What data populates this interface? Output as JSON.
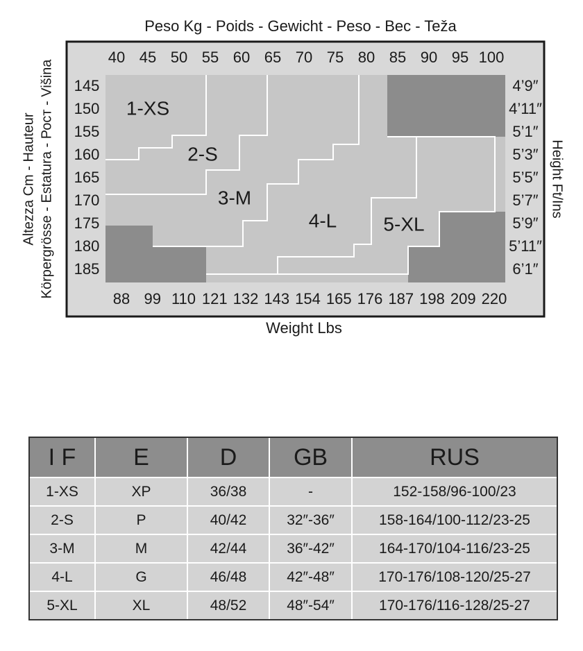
{
  "chart": {
    "top_label": "Peso Kg - Poids - Gewicht - Peso - Bec - Teža",
    "kg_labels": [
      "40",
      "45",
      "50",
      "55",
      "60",
      "65",
      "70",
      "75",
      "80",
      "85",
      "90",
      "95",
      "100"
    ],
    "cm_labels": [
      "145",
      "150",
      "155",
      "160",
      "165",
      "170",
      "175",
      "180",
      "185"
    ],
    "lbs_labels": [
      "88",
      "99",
      "110",
      "121",
      "132",
      "143",
      "154",
      "165",
      "176",
      "187",
      "198",
      "209",
      "220"
    ],
    "ft_labels": [
      "4’9″",
      "4’11″",
      "5’1″",
      "5’3″",
      "5’5″",
      "5’7″",
      "5’9″",
      "5’11″",
      "6’1″"
    ],
    "left_label_lines": [
      "Altezza Cm - Hauteur",
      "Körpergrösse - Estatura - Рост - Višina"
    ],
    "right_label": "Height Ft/Ins",
    "bottom_label": "Weight Lbs",
    "sizes": [
      "1-XS",
      "2-S",
      "3-M",
      "4-L",
      "5-XL"
    ]
  },
  "table": {
    "header": [
      "I F",
      "E",
      "D",
      "GB",
      "RUS"
    ],
    "rows": [
      [
        "1-XS",
        "XP",
        "36/38",
        "-",
        "152-158/96-100/23"
      ],
      [
        "2-S",
        "P",
        "40/42",
        "32″-36″",
        "158-164/100-112/23-25"
      ],
      [
        "3-M",
        "M",
        "42/44",
        "36″-42″",
        "164-170/104-116/23-25"
      ],
      [
        "4-L",
        "G",
        "46/48",
        "42″-48″",
        "170-176/108-120/25-27"
      ],
      [
        "5-XL",
        "XL",
        "48/52",
        "48″-54″",
        "170-176/116-128/25-27"
      ]
    ]
  }
}
